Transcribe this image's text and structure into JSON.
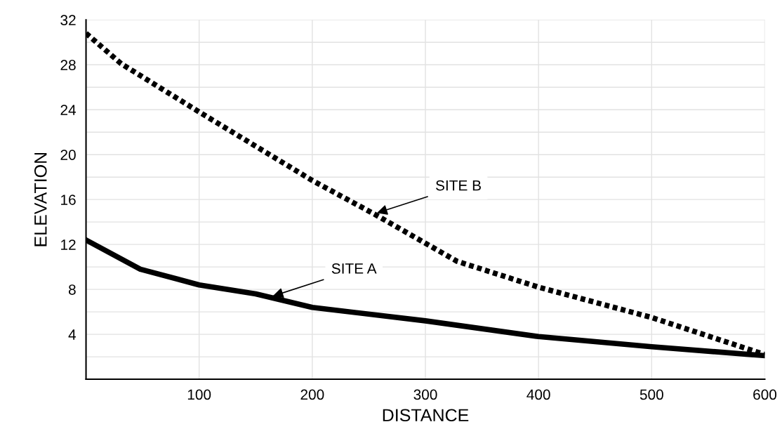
{
  "chart_data": {
    "type": "line",
    "xlabel": "DISTANCE",
    "ylabel": "ELEVATION",
    "xlim": [
      0,
      600
    ],
    "ylim": [
      0,
      32
    ],
    "xticks": [
      {
        "value": 0,
        "label": null
      },
      100,
      200,
      300,
      400,
      500,
      600
    ],
    "yticks": [
      {
        "value": 0,
        "label": null
      },
      4,
      8,
      12,
      16,
      20,
      24,
      28,
      32
    ],
    "grid": true,
    "legend": false,
    "series": [
      {
        "color": "#000000",
        "line_style": "solid",
        "x": [
          0,
          48,
          100,
          150,
          200,
          300,
          400,
          500,
          600
        ],
        "values": [
          12.4,
          9.8,
          8.4,
          7.6,
          6.4,
          5.2,
          3.8,
          2.9,
          2.1
        ]
      },
      {
        "color": "#000000",
        "line_style": "dotted",
        "x": [
          0,
          31,
          100,
          200,
          255,
          328,
          400,
          500,
          600
        ],
        "values": [
          30.8,
          28.1,
          23.8,
          17.7,
          14.7,
          10.5,
          8.2,
          5.5,
          2.2
        ]
      }
    ],
    "annotations": [
      {
        "text": "SITE A",
        "x": 165,
        "y": 7.4
      },
      {
        "text": "SITE B",
        "x": 257,
        "y": 14.8
      }
    ]
  }
}
